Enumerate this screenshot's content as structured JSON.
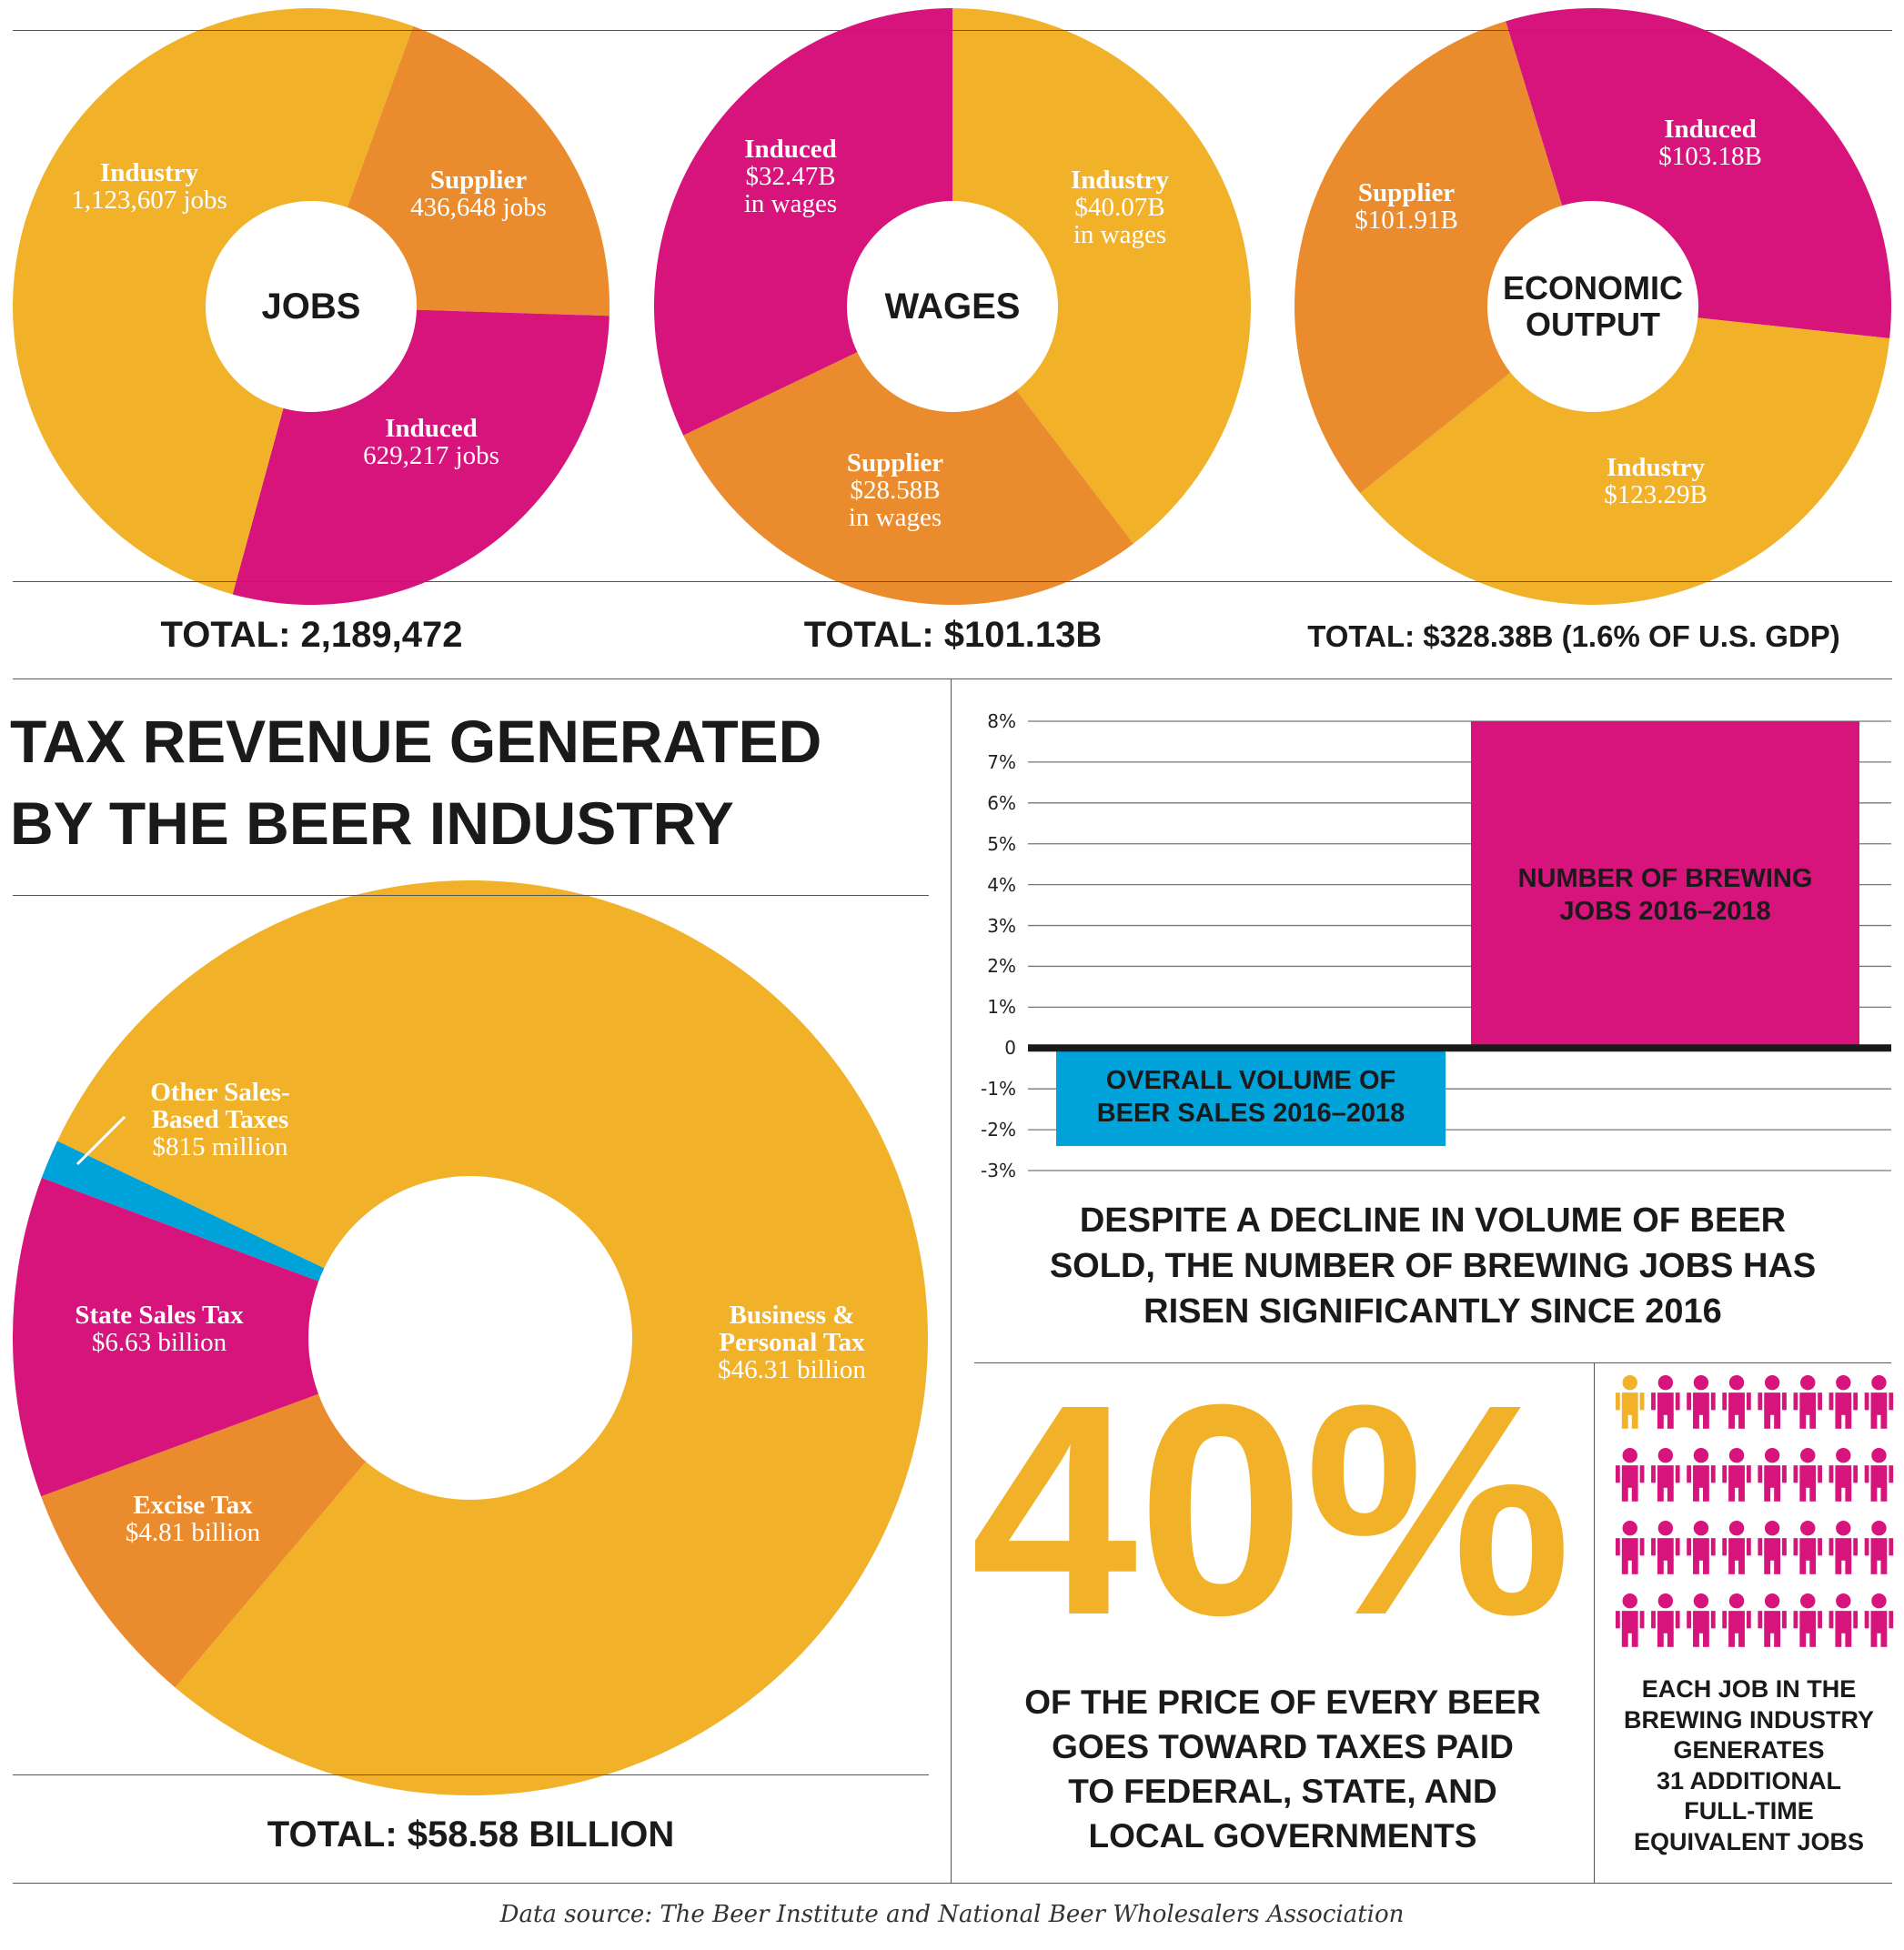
{
  "colors": {
    "yellow": "#F1B22A",
    "orange": "#EA8C2E",
    "magenta": "#D6147B",
    "blue": "#00A3D9",
    "dark": "#1a1a1a"
  },
  "chart_data": [
    {
      "type": "pie",
      "title": "JOBS",
      "total_label": "TOTAL: 2,189,472",
      "slices": [
        {
          "name": "Supplier",
          "value": 436648,
          "label": "436,648 jobs",
          "color": "#EA8C2E"
        },
        {
          "name": "Induced",
          "value": 629217,
          "label": "629,217 jobs",
          "color": "#D6147B"
        },
        {
          "name": "Industry",
          "value": 1123607,
          "label": "1,123,607 jobs",
          "color": "#F1B22A"
        }
      ]
    },
    {
      "type": "pie",
      "title": "WAGES",
      "total_label": "TOTAL: $101.13B",
      "slices": [
        {
          "name": "Industry",
          "value": 40.07,
          "label": "$40.07B",
          "sub": "in wages",
          "color": "#F1B22A"
        },
        {
          "name": "Supplier",
          "value": 28.58,
          "label": "$28.58B",
          "sub": "in wages",
          "color": "#EA8C2E"
        },
        {
          "name": "Induced",
          "value": 32.47,
          "label": "$32.47B",
          "sub": "in wages",
          "color": "#D6147B"
        }
      ]
    },
    {
      "type": "pie",
      "title_line1": "ECONOMIC",
      "title_line2": "OUTPUT",
      "total_label": "TOTAL: $328.38B (1.6% OF U.S. GDP)",
      "slices": [
        {
          "name": "Induced",
          "value": 103.18,
          "label": "$103.18B",
          "color": "#D6147B"
        },
        {
          "name": "Industry",
          "value": 123.29,
          "label": "$123.29B",
          "color": "#F1B22A"
        },
        {
          "name": "Supplier",
          "value": 101.91,
          "label": "$101.91B",
          "color": "#EA8C2E"
        }
      ]
    },
    {
      "type": "pie",
      "title_line1": "TAX REVENUE GENERATED",
      "title_line2": "BY THE BEER INDUSTRY",
      "total_label": "TOTAL: $58.58 BILLION",
      "slices": [
        {
          "name": "Business & Personal Tax",
          "line1": "Business &",
          "line2": "Personal Tax",
          "value": 46.31,
          "label": "$46.31 billion",
          "color": "#F1B22A"
        },
        {
          "name": "Excise Tax",
          "value": 4.81,
          "label": "$4.81 billion",
          "color": "#EA8C2E"
        },
        {
          "name": "State Sales Tax",
          "value": 6.63,
          "label": "$6.63 billion",
          "color": "#D6147B"
        },
        {
          "name": "Other Sales-Based Taxes",
          "line1": "Other Sales-",
          "line2": "Based Taxes",
          "value": 0.815,
          "label": "$815 million",
          "color": "#00A3D9"
        }
      ]
    },
    {
      "type": "bar",
      "ylim": [
        -3,
        8
      ],
      "yticks": [
        "8%",
        "7%",
        "6%",
        "5%",
        "4%",
        "3%",
        "2%",
        "1%",
        "0",
        "-1%",
        "-2%",
        "-3%"
      ],
      "grid": true,
      "bars": [
        {
          "line1": "OVERALL VOLUME OF",
          "line2": "BEER SALES 2016–2018",
          "value": -2.4,
          "color": "#00A3D9"
        },
        {
          "line1": "NUMBER OF BREWING",
          "line2": "JOBS 2016–2018",
          "value": 8.0,
          "color": "#D6147B"
        }
      ],
      "caption": [
        "DESPITE A DECLINE IN VOLUME OF BEER",
        "SOLD, THE NUMBER OF BREWING JOBS HAS",
        "RISEN SIGNIFICANTLY SINCE 2016"
      ]
    }
  ],
  "stat": {
    "value": "40%",
    "lines": [
      "OF THE PRICE OF EVERY BEER",
      "GOES TOWARD TAXES PAID",
      "TO FEDERAL, STATE, AND",
      "LOCAL GOVERNMENTS"
    ]
  },
  "people": {
    "total": 32,
    "highlighted": 1,
    "icon": "person-icon",
    "lines": [
      "EACH JOB IN THE",
      "BREWING INDUSTRY",
      "GENERATES",
      "31 ADDITIONAL",
      "FULL-TIME",
      "EQUIVALENT JOBS"
    ]
  },
  "source": "Data source: The Beer Institute and National Beer Wholesalers Association"
}
